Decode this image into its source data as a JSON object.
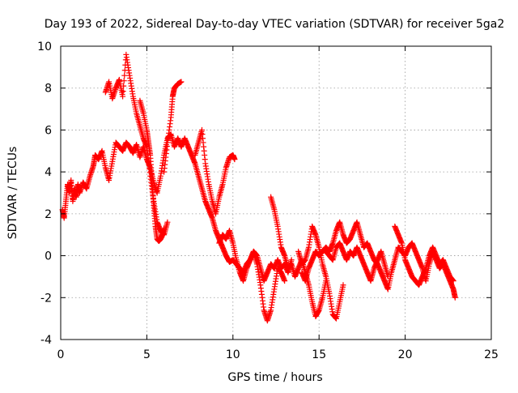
{
  "chart_data": {
    "type": "scatter",
    "title": "Day 193 of 2022, Sidereal Day-to-day VTEC variation (SDTVAR) for receiver 5ga2",
    "xlabel": "GPS time / hours",
    "ylabel": "SDTVAR / TECUs",
    "xlim": [
      0,
      25
    ],
    "ylim": [
      -4,
      10
    ],
    "xticks": [
      0,
      5,
      10,
      15,
      20,
      25
    ],
    "yticks": [
      -4,
      -2,
      0,
      2,
      4,
      6,
      8,
      10
    ],
    "grid": true,
    "marker": "+",
    "series": [
      {
        "name": "SDTVAR",
        "color": "#ff0000",
        "tracks": [
          [
            [
              0.1,
              2.2
            ],
            [
              0.2,
              1.8
            ],
            [
              0.3,
              2.6
            ],
            [
              0.4,
              3.4
            ],
            [
              0.5,
              3.0
            ],
            [
              0.6,
              3.6
            ],
            [
              0.7,
              2.6
            ],
            [
              0.8,
              3.2
            ],
            [
              0.9,
              2.8
            ],
            [
              1.0,
              3.4
            ],
            [
              1.1,
              3.0
            ],
            [
              1.3,
              3.5
            ],
            [
              1.5,
              3.2
            ],
            [
              1.7,
              3.8
            ],
            [
              1.9,
              4.3
            ],
            [
              2.0,
              4.8
            ],
            [
              2.2,
              4.6
            ],
            [
              2.4,
              5.0
            ],
            [
              2.6,
              4.2
            ],
            [
              2.8,
              3.6
            ],
            [
              3.0,
              4.5
            ],
            [
              3.2,
              5.4
            ],
            [
              3.4,
              5.2
            ],
            [
              3.6,
              5.0
            ],
            [
              3.8,
              5.4
            ],
            [
              4.0,
              5.2
            ],
            [
              4.2,
              4.9
            ],
            [
              4.4,
              5.3
            ],
            [
              4.6,
              4.7
            ],
            [
              4.8,
              5.2
            ],
            [
              5.0,
              4.6
            ],
            [
              5.2,
              4.2
            ],
            [
              5.4,
              3.5
            ],
            [
              5.6,
              3.0
            ],
            [
              5.8,
              3.8
            ],
            [
              6.0,
              4.8
            ],
            [
              6.2,
              5.6
            ],
            [
              6.4,
              5.8
            ],
            [
              6.6,
              5.2
            ],
            [
              6.8,
              5.6
            ],
            [
              7.0,
              5.2
            ],
            [
              7.2,
              5.6
            ],
            [
              7.4,
              5.2
            ],
            [
              7.6,
              4.8
            ],
            [
              7.8,
              4.4
            ],
            [
              8.0,
              3.8
            ],
            [
              8.2,
              3.2
            ],
            [
              8.4,
              2.6
            ],
            [
              8.6,
              2.2
            ],
            [
              8.8,
              1.8
            ],
            [
              9.0,
              1.2
            ],
            [
              9.2,
              0.8
            ],
            [
              9.4,
              0.4
            ],
            [
              9.6,
              0.0
            ],
            [
              9.8,
              -0.3
            ],
            [
              10.0,
              -0.2
            ],
            [
              10.2,
              -0.4
            ],
            [
              10.4,
              -0.6
            ],
            [
              10.6,
              -0.8
            ],
            [
              10.8,
              -0.4
            ],
            [
              11.0,
              -0.2
            ],
            [
              11.2,
              0.2
            ],
            [
              11.4,
              0.0
            ],
            [
              11.6,
              -0.6
            ],
            [
              11.8,
              -1.2
            ],
            [
              12.0,
              -0.8
            ],
            [
              12.2,
              -0.4
            ],
            [
              12.4,
              -0.6
            ],
            [
              12.6,
              -0.2
            ],
            [
              12.8,
              -0.6
            ],
            [
              13.0,
              -0.4
            ],
            [
              13.2,
              -0.8
            ],
            [
              13.4,
              -0.2
            ]
          ],
          [
            [
              2.6,
              7.8
            ],
            [
              2.8,
              8.3
            ],
            [
              3.0,
              7.5
            ],
            [
              3.2,
              8.0
            ],
            [
              3.4,
              8.4
            ],
            [
              3.6,
              7.6
            ],
            [
              3.8,
              9.6
            ],
            [
              4.0,
              8.6
            ],
            [
              4.2,
              7.6
            ],
            [
              4.4,
              6.8
            ],
            [
              4.6,
              6.2
            ],
            [
              4.8,
              5.6
            ],
            [
              5.0,
              5.2
            ],
            [
              5.2,
              3.8
            ],
            [
              5.4,
              2.6
            ],
            [
              5.6,
              1.6
            ],
            [
              5.8,
              1.2
            ],
            [
              6.0,
              1.0
            ],
            [
              6.2,
              1.6
            ]
          ],
          [
            [
              4.6,
              7.4
            ],
            [
              4.8,
              6.8
            ],
            [
              5.0,
              6.0
            ],
            [
              5.1,
              5.4
            ],
            [
              5.2,
              4.8
            ],
            [
              5.3,
              3.6
            ],
            [
              5.4,
              2.4
            ],
            [
              5.5,
              1.4
            ],
            [
              5.6,
              0.8
            ],
            [
              5.7,
              0.7
            ],
            [
              5.8,
              0.8
            ],
            [
              5.9,
              1.0
            ],
            [
              6.0,
              1.3
            ]
          ],
          [
            [
              6.0,
              4.0
            ],
            [
              6.2,
              5.4
            ],
            [
              6.4,
              6.6
            ],
            [
              6.5,
              7.6
            ],
            [
              6.6,
              8.0
            ],
            [
              6.8,
              8.2
            ],
            [
              7.0,
              8.3
            ]
          ],
          [
            [
              7.8,
              4.8
            ],
            [
              8.0,
              5.4
            ],
            [
              8.2,
              6.0
            ],
            [
              8.4,
              4.4
            ],
            [
              8.6,
              3.4
            ],
            [
              8.8,
              2.6
            ],
            [
              9.0,
              2.0
            ],
            [
              9.2,
              2.8
            ],
            [
              9.4,
              3.4
            ],
            [
              9.6,
              4.2
            ],
            [
              9.8,
              4.7
            ],
            [
              10.0,
              4.8
            ],
            [
              10.1,
              4.6
            ]
          ],
          [
            [
              9.2,
              0.6
            ],
            [
              9.4,
              1.0
            ],
            [
              9.6,
              0.8
            ],
            [
              9.8,
              1.2
            ],
            [
              10.0,
              0.6
            ],
            [
              10.2,
              -0.2
            ],
            [
              10.4,
              -0.8
            ],
            [
              10.6,
              -1.2
            ],
            [
              10.8,
              -0.6
            ],
            [
              11.0,
              -0.2
            ],
            [
              11.2,
              0.2
            ],
            [
              11.4,
              -0.4
            ],
            [
              11.6,
              -1.4
            ],
            [
              11.8,
              -2.6
            ],
            [
              12.0,
              -3.1
            ],
            [
              12.2,
              -2.6
            ],
            [
              12.4,
              -1.6
            ],
            [
              12.6,
              -0.6
            ],
            [
              12.8,
              -0.8
            ],
            [
              13.0,
              -1.2
            ]
          ],
          [
            [
              12.2,
              2.8
            ],
            [
              12.4,
              2.2
            ],
            [
              12.6,
              1.4
            ],
            [
              12.8,
              0.4
            ],
            [
              13.0,
              0.0
            ],
            [
              13.2,
              -0.6
            ],
            [
              13.4,
              -0.4
            ],
            [
              13.6,
              -1.0
            ],
            [
              13.8,
              -0.6
            ],
            [
              14.0,
              -0.2
            ],
            [
              14.2,
              -0.8
            ],
            [
              14.4,
              -1.4
            ],
            [
              14.6,
              -2.2
            ],
            [
              14.8,
              -2.9
            ],
            [
              15.0,
              -2.6
            ],
            [
              15.2,
              -2.0
            ],
            [
              15.4,
              -1.2
            ]
          ],
          [
            [
              13.8,
              0.2
            ],
            [
              14.0,
              -0.4
            ],
            [
              14.2,
              -0.2
            ],
            [
              14.4,
              0.4
            ],
            [
              14.6,
              1.4
            ],
            [
              14.8,
              1.0
            ],
            [
              15.0,
              0.4
            ],
            [
              15.2,
              -0.4
            ],
            [
              15.4,
              -1.0
            ],
            [
              15.6,
              -1.8
            ],
            [
              15.8,
              -2.8
            ],
            [
              16.0,
              -3.0
            ],
            [
              16.2,
              -2.2
            ],
            [
              16.4,
              -1.4
            ]
          ],
          [
            [
              14.0,
              -0.8
            ],
            [
              14.2,
              -1.2
            ],
            [
              14.4,
              -0.6
            ],
            [
              14.6,
              -0.2
            ],
            [
              14.8,
              0.2
            ],
            [
              15.0,
              0.0
            ],
            [
              15.2,
              0.2
            ],
            [
              15.4,
              0.4
            ],
            [
              15.6,
              0.2
            ],
            [
              15.8,
              0.6
            ],
            [
              16.0,
              1.2
            ],
            [
              16.2,
              1.6
            ],
            [
              16.4,
              1.0
            ],
            [
              16.6,
              0.6
            ],
            [
              16.8,
              0.8
            ],
            [
              17.0,
              1.2
            ],
            [
              17.2,
              1.6
            ],
            [
              17.4,
              1.0
            ],
            [
              17.6,
              0.4
            ],
            [
              17.8,
              0.6
            ],
            [
              18.0,
              0.2
            ],
            [
              18.2,
              -0.2
            ],
            [
              18.4,
              -0.4
            ],
            [
              18.6,
              -0.8
            ],
            [
              18.8,
              -1.2
            ],
            [
              19.0,
              -1.6
            ],
            [
              19.2,
              -0.8
            ],
            [
              19.4,
              -0.2
            ],
            [
              19.6,
              0.4
            ],
            [
              19.8,
              0.2
            ],
            [
              20.0,
              0.0
            ],
            [
              20.2,
              0.4
            ],
            [
              20.4,
              0.6
            ],
            [
              20.6,
              0.2
            ],
            [
              20.8,
              -0.2
            ],
            [
              21.0,
              -0.6
            ],
            [
              21.2,
              -1.2
            ],
            [
              21.4,
              -0.4
            ],
            [
              21.6,
              0.2
            ],
            [
              21.8,
              -0.2
            ],
            [
              22.0,
              -0.6
            ],
            [
              22.2,
              -0.4
            ],
            [
              22.4,
              -0.8
            ],
            [
              22.6,
              -1.2
            ],
            [
              22.8,
              -1.6
            ],
            [
              22.9,
              -2.0
            ]
          ],
          [
            [
              15.4,
              0.2
            ],
            [
              15.6,
              0.0
            ],
            [
              15.8,
              -0.2
            ],
            [
              16.0,
              0.4
            ],
            [
              16.2,
              0.6
            ],
            [
              16.4,
              0.2
            ],
            [
              16.6,
              -0.2
            ],
            [
              16.8,
              0.2
            ],
            [
              17.0,
              0.0
            ],
            [
              17.2,
              0.4
            ],
            [
              17.4,
              0.0
            ],
            [
              17.6,
              -0.4
            ],
            [
              17.8,
              -0.8
            ],
            [
              18.0,
              -1.2
            ],
            [
              18.2,
              -0.6
            ],
            [
              18.4,
              -0.2
            ],
            [
              18.6,
              0.2
            ],
            [
              18.8,
              -0.4
            ],
            [
              19.0,
              -1.0
            ]
          ],
          [
            [
              19.4,
              1.4
            ],
            [
              19.6,
              1.0
            ],
            [
              19.8,
              0.6
            ],
            [
              20.0,
              -0.2
            ],
            [
              20.2,
              -0.6
            ],
            [
              20.4,
              -1.0
            ],
            [
              20.6,
              -1.2
            ],
            [
              20.8,
              -1.4
            ],
            [
              21.0,
              -1.0
            ],
            [
              21.2,
              -0.6
            ],
            [
              21.4,
              0.0
            ],
            [
              21.6,
              0.4
            ],
            [
              21.8,
              0.0
            ],
            [
              22.0,
              -0.4
            ],
            [
              22.2,
              -0.2
            ],
            [
              22.4,
              -0.6
            ],
            [
              22.6,
              -1.0
            ],
            [
              22.8,
              -1.2
            ]
          ]
        ]
      }
    ]
  }
}
